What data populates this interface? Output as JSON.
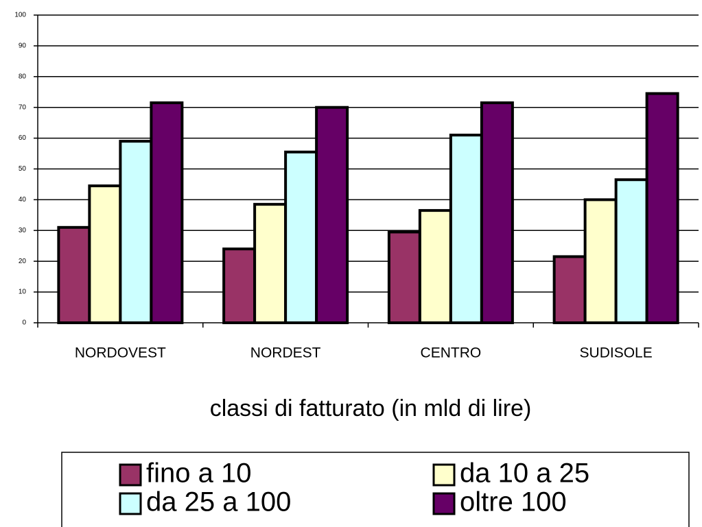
{
  "chart_data": {
    "type": "bar",
    "x_label": "classi di fatturato (in mld di lire)",
    "categories": [
      "NORDOVEST",
      "NORDEST",
      "CENTRO",
      "SUDISOLE"
    ],
    "series": [
      {
        "name": "fino a 10",
        "color": "#993366",
        "values": [
          31,
          24,
          29.5,
          21.5
        ]
      },
      {
        "name": "da 10 a 25",
        "color": "#ffffcc",
        "values": [
          44.5,
          38.5,
          36.5,
          40
        ]
      },
      {
        "name": "da 25 a 100",
        "color": "#ccffff",
        "values": [
          59,
          55.5,
          61,
          46.5
        ]
      },
      {
        "name": "oltre 100",
        "color": "#660066",
        "values": [
          71.5,
          70,
          71.5,
          74.5
        ]
      }
    ],
    "ylim": [
      0,
      100
    ],
    "yticks": [
      0,
      10,
      20,
      30,
      40,
      50,
      60,
      70,
      80,
      90,
      100
    ],
    "grid": true,
    "legend": "bottom"
  }
}
